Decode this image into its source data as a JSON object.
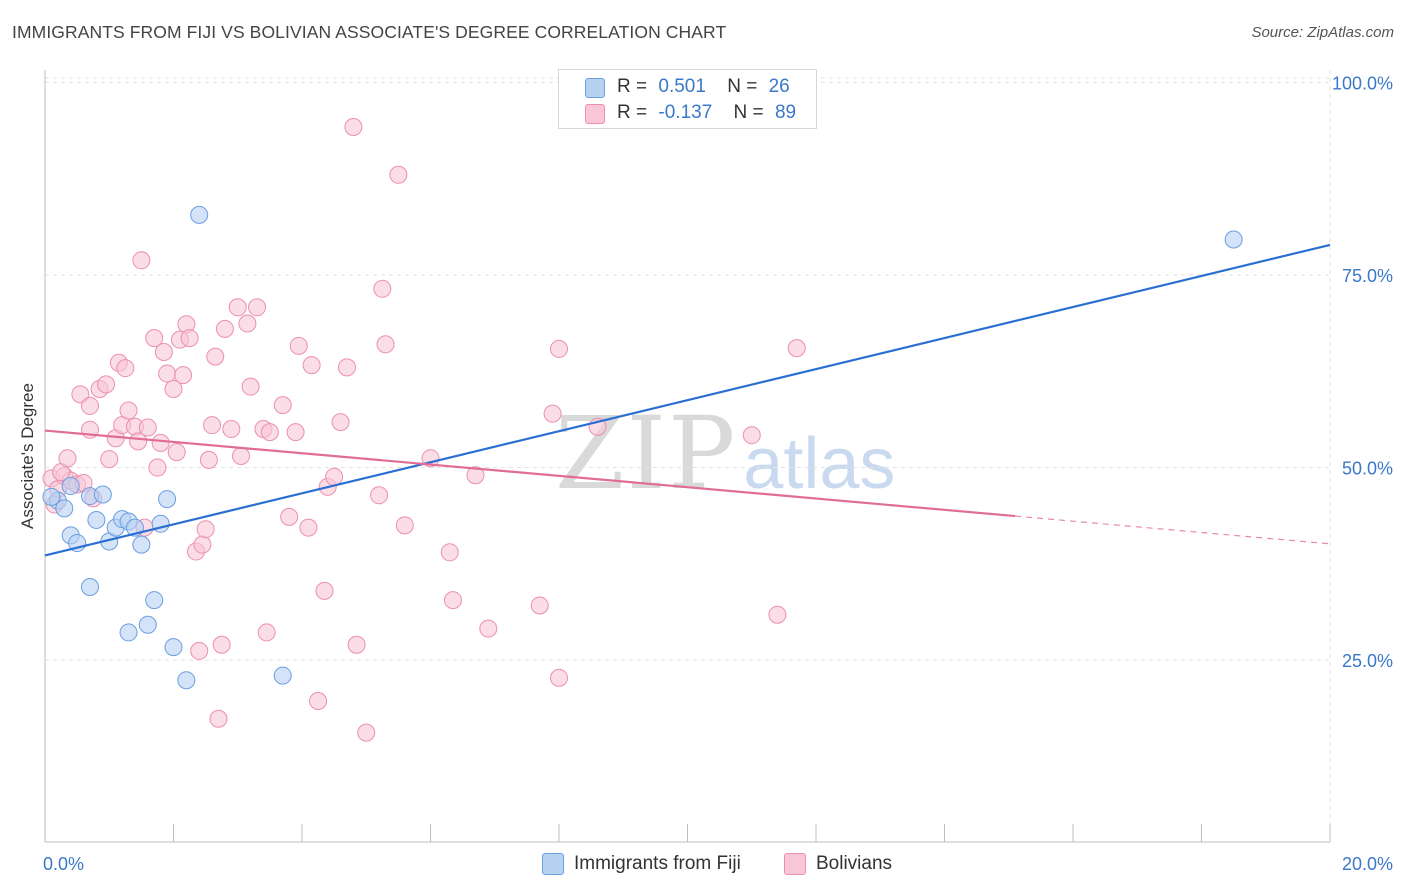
{
  "header": {
    "title": "IMMIGRANTS FROM FIJI VS BOLIVIAN ASSOCIATE'S DEGREE CORRELATION CHART",
    "source": "Source: ZipAtlas.com"
  },
  "watermark": {
    "zip": "ZIP",
    "atlas": "atlas"
  },
  "legend_top": {
    "rows": [
      {
        "r_label": "R =",
        "r_value": "0.501",
        "n_label": "N =",
        "n_value": "26"
      },
      {
        "r_label": "R =",
        "r_value": "-0.137",
        "n_label": "N =",
        "n_value": "89"
      }
    ]
  },
  "legend_bottom": {
    "fiji": "Immigrants from Fiji",
    "bolivians": "Bolivians"
  },
  "colors": {
    "fiji_fill": "#b7d1f3",
    "fiji_stroke": "#6a9fe0",
    "fiji_line": "#2b6fd1",
    "bol_fill": "#f8c6d6",
    "bol_stroke": "#ec8fb0",
    "bol_line": "#e06c97",
    "tick_text": "#3a78c9",
    "grid": "#e2e2e2"
  },
  "chart_data": {
    "type": "scatter",
    "title": "IMMIGRANTS FROM FIJI VS BOLIVIAN ASSOCIATE'S DEGREE CORRELATION CHART",
    "xlabel": "",
    "ylabel": "Associate's Degree",
    "xlim": [
      0,
      20
    ],
    "ylim": [
      1.4,
      101.6
    ],
    "x_tick_labels": [
      "0.0%",
      "20.0%"
    ],
    "y_ticks": [
      {
        "value": 25,
        "label": "25.0%"
      },
      {
        "value": 50,
        "label": "50.0%"
      },
      {
        "value": 75,
        "label": "75.0%"
      },
      {
        "value": 100,
        "label": "100.0%"
      }
    ],
    "grid": true,
    "legend_position": "top-center",
    "series": [
      {
        "name": "Immigrants from Fiji",
        "r": 0.501,
        "n": 26,
        "trend": {
          "x": [
            0,
            20
          ],
          "y": [
            38.6,
            78.9
          ],
          "solid_until": 20
        },
        "points": [
          [
            0.2,
            45.7
          ],
          [
            0.3,
            44.7
          ],
          [
            0.4,
            41.2
          ],
          [
            0.5,
            40.2
          ],
          [
            0.7,
            46.3
          ],
          [
            0.8,
            43.2
          ],
          [
            0.9,
            46.5
          ],
          [
            1.0,
            40.4
          ],
          [
            1.1,
            42.2
          ],
          [
            1.2,
            43.3
          ],
          [
            1.3,
            43.0
          ],
          [
            1.4,
            42.2
          ],
          [
            1.5,
            40.0
          ],
          [
            1.8,
            42.7
          ],
          [
            1.9,
            45.9
          ],
          [
            0.7,
            34.5
          ],
          [
            1.7,
            32.8
          ],
          [
            1.6,
            29.6
          ],
          [
            1.3,
            28.6
          ],
          [
            2.0,
            26.7
          ],
          [
            2.2,
            22.4
          ],
          [
            3.7,
            23.0
          ],
          [
            2.4,
            82.8
          ],
          [
            18.5,
            79.6
          ],
          [
            0.1,
            46.2
          ],
          [
            0.4,
            47.6
          ]
        ]
      },
      {
        "name": "Bolivians",
        "r": -0.137,
        "n": 89,
        "trend": {
          "x": [
            0,
            20
          ],
          "y": [
            54.8,
            40.1
          ],
          "solid_until": 15.1
        },
        "points": [
          [
            0.1,
            48.6
          ],
          [
            0.2,
            47.2
          ],
          [
            0.3,
            48.9
          ],
          [
            0.4,
            48.3
          ],
          [
            0.5,
            47.8
          ],
          [
            0.25,
            49.4
          ],
          [
            0.6,
            48.0
          ],
          [
            0.75,
            46.0
          ],
          [
            0.35,
            51.2
          ],
          [
            0.55,
            59.5
          ],
          [
            0.7,
            58.0
          ],
          [
            0.7,
            54.9
          ],
          [
            0.85,
            60.2
          ],
          [
            0.95,
            60.8
          ],
          [
            1.0,
            51.1
          ],
          [
            1.1,
            53.8
          ],
          [
            1.15,
            63.6
          ],
          [
            1.2,
            55.5
          ],
          [
            1.25,
            62.9
          ],
          [
            1.3,
            57.4
          ],
          [
            1.4,
            55.3
          ],
          [
            1.45,
            53.4
          ],
          [
            1.5,
            76.9
          ],
          [
            1.6,
            55.2
          ],
          [
            1.7,
            66.8
          ],
          [
            1.75,
            50.0
          ],
          [
            1.8,
            53.2
          ],
          [
            1.85,
            65.0
          ],
          [
            1.9,
            62.2
          ],
          [
            2.0,
            60.2
          ],
          [
            2.05,
            52.0
          ],
          [
            2.1,
            66.6
          ],
          [
            2.15,
            62.0
          ],
          [
            2.2,
            68.6
          ],
          [
            2.25,
            66.8
          ],
          [
            2.35,
            39.1
          ],
          [
            2.45,
            40.0
          ],
          [
            2.5,
            42.0
          ],
          [
            2.55,
            51.0
          ],
          [
            2.6,
            55.5
          ],
          [
            2.65,
            64.4
          ],
          [
            2.7,
            17.4
          ],
          [
            2.75,
            27.0
          ],
          [
            2.8,
            68.0
          ],
          [
            2.9,
            55.0
          ],
          [
            3.0,
            70.8
          ],
          [
            3.05,
            51.5
          ],
          [
            3.15,
            68.7
          ],
          [
            3.2,
            60.5
          ],
          [
            3.3,
            70.8
          ],
          [
            3.4,
            55.0
          ],
          [
            3.45,
            28.6
          ],
          [
            3.5,
            54.6
          ],
          [
            3.7,
            58.1
          ],
          [
            3.8,
            43.6
          ],
          [
            3.9,
            54.6
          ],
          [
            3.95,
            65.8
          ],
          [
            4.1,
            42.2
          ],
          [
            4.15,
            63.3
          ],
          [
            4.25,
            19.7
          ],
          [
            4.35,
            34.0
          ],
          [
            4.4,
            47.5
          ],
          [
            4.5,
            48.8
          ],
          [
            4.6,
            55.9
          ],
          [
            4.7,
            63.0
          ],
          [
            4.8,
            94.2
          ],
          [
            4.85,
            27.0
          ],
          [
            5.0,
            15.6
          ],
          [
            5.2,
            46.4
          ],
          [
            5.25,
            73.2
          ],
          [
            5.3,
            66.0
          ],
          [
            5.5,
            88.0
          ],
          [
            5.6,
            42.5
          ],
          [
            6.0,
            51.2
          ],
          [
            6.3,
            39.0
          ],
          [
            6.35,
            32.8
          ],
          [
            6.7,
            49.0
          ],
          [
            6.9,
            29.1
          ],
          [
            7.7,
            32.1
          ],
          [
            7.9,
            57.0
          ],
          [
            8.0,
            65.4
          ],
          [
            8.0,
            22.7
          ],
          [
            8.6,
            55.3
          ],
          [
            11.0,
            54.2
          ],
          [
            11.4,
            30.9
          ],
          [
            11.7,
            65.5
          ],
          [
            1.55,
            42.2
          ],
          [
            2.4,
            26.2
          ],
          [
            0.15,
            45.2
          ]
        ]
      }
    ]
  }
}
